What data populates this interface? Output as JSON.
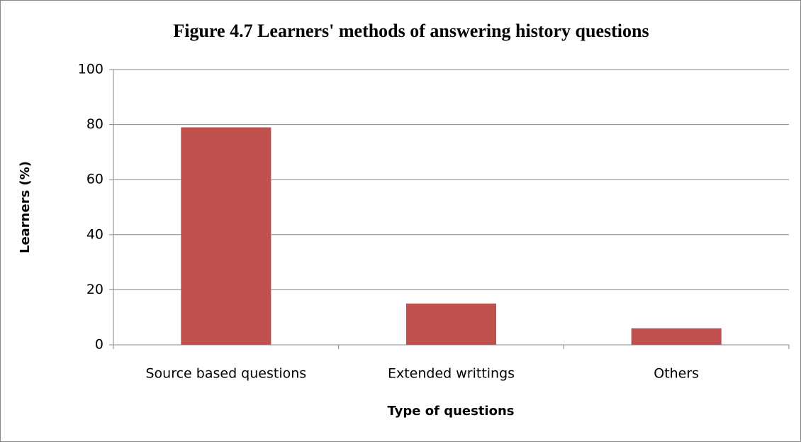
{
  "chart_data": {
    "type": "bar",
    "title": "Figure 4.7 Learners' methods of answering history questions",
    "x_label": "Type of questions",
    "y_label": "Learners (%)",
    "categories": [
      "Source based questions",
      "Extended writtings",
      "Others"
    ],
    "values": [
      79,
      15,
      6
    ],
    "color": "#c0504d",
    "ylim": [
      0,
      100
    ],
    "yticks": [
      0,
      20,
      40,
      60,
      80,
      100
    ],
    "grid": true
  }
}
